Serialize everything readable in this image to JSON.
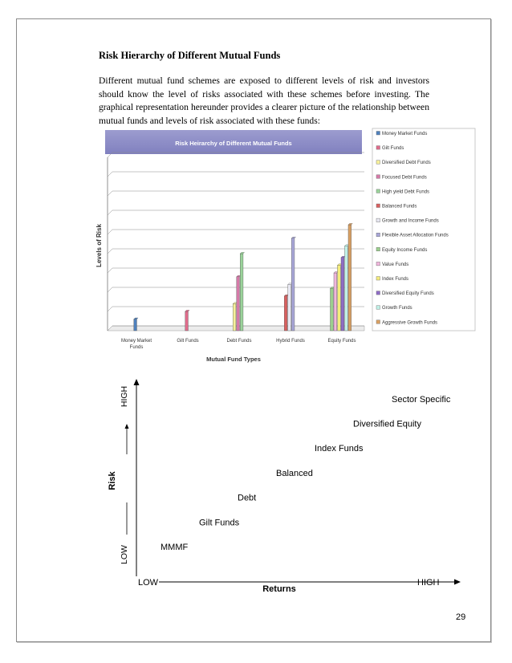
{
  "page": {
    "heading": "Risk Hierarchy of Different Mutual Funds",
    "paragraph": "Different mutual fund schemes are exposed to different levels of risk and investors should know the level of risks associated with these schemes before investing. The graphical representation hereunder provides a clearer picture of the relationship between mutual funds and levels of risk associated with these funds:",
    "page_number": "29"
  },
  "chart_data": [
    {
      "type": "bar",
      "title": "Risk Heirarchy of Different Mutual Funds",
      "xlabel": "Mutual Fund Types",
      "ylabel": "Levels of Risk",
      "categories": [
        "Money Market Funds",
        "Gilt Funds",
        "Debt Funds",
        "Hybrid Funds",
        "Equity Funds"
      ],
      "ylim": [
        0,
        9
      ],
      "grid": true,
      "legend_position": "right",
      "series": [
        {
          "name": "Money Market Funds",
          "color": "#4f81bd",
          "values": [
            0.6,
            null,
            null,
            null,
            null
          ]
        },
        {
          "name": "Gilt Funds",
          "color": "#e06c8c",
          "values": [
            null,
            1.0,
            null,
            null,
            null
          ]
        },
        {
          "name": "Diversified Debt Funds",
          "color": "#f6f09a",
          "values": [
            null,
            null,
            1.4,
            null,
            null
          ]
        },
        {
          "name": "Focused Debt Funds",
          "color": "#d57aa8",
          "values": [
            null,
            null,
            2.8,
            null,
            null
          ]
        },
        {
          "name": "High yield Debt Funds",
          "color": "#9ad39a",
          "values": [
            null,
            null,
            4.0,
            null,
            null
          ]
        },
        {
          "name": "Balanced Funds",
          "color": "#d96060",
          "values": [
            null,
            null,
            null,
            1.8,
            null
          ]
        },
        {
          "name": "Growth and Income Funds",
          "color": "#e8e8f2",
          "values": [
            null,
            null,
            null,
            2.4,
            null
          ]
        },
        {
          "name": "Flexible Asset Allocation Funds",
          "color": "#a8a6d8",
          "values": [
            null,
            null,
            null,
            4.8,
            null
          ]
        },
        {
          "name": "Equity Income Funds",
          "color": "#9bcf8e",
          "values": [
            null,
            null,
            null,
            null,
            2.2
          ]
        },
        {
          "name": "Value Funds",
          "color": "#f0b6dc",
          "values": [
            null,
            null,
            null,
            null,
            3.0
          ]
        },
        {
          "name": "Index Funds",
          "color": "#f4ec7c",
          "values": [
            null,
            null,
            null,
            null,
            3.4
          ]
        },
        {
          "name": "Diversified Equity Funds",
          "color": "#8f6cc6",
          "values": [
            null,
            null,
            null,
            null,
            3.8
          ]
        },
        {
          "name": "Growth Funds",
          "color": "#bff0e6",
          "values": [
            null,
            null,
            null,
            null,
            4.4
          ]
        },
        {
          "name": "Aggressive Growth Funds",
          "color": "#d9a063",
          "values": [
            null,
            null,
            null,
            null,
            5.5
          ]
        }
      ]
    },
    {
      "type": "scatter",
      "xlabel": "Returns",
      "ylabel": "Risk",
      "x_low_label": "LOW",
      "x_high_label": "HIGH",
      "y_low_label": "LOW",
      "y_high_label": "HIGH",
      "points": [
        {
          "label": "MMMF",
          "x": 1,
          "y": 1
        },
        {
          "label": "Gilt Funds",
          "x": 2,
          "y": 2
        },
        {
          "label": "Debt",
          "x": 3,
          "y": 3
        },
        {
          "label": "Balanced",
          "x": 4,
          "y": 4
        },
        {
          "label": "Index Funds",
          "x": 5,
          "y": 5
        },
        {
          "label": "Diversified Equity",
          "x": 6,
          "y": 6
        },
        {
          "label": "Sector Specific",
          "x": 7,
          "y": 7
        }
      ]
    }
  ]
}
